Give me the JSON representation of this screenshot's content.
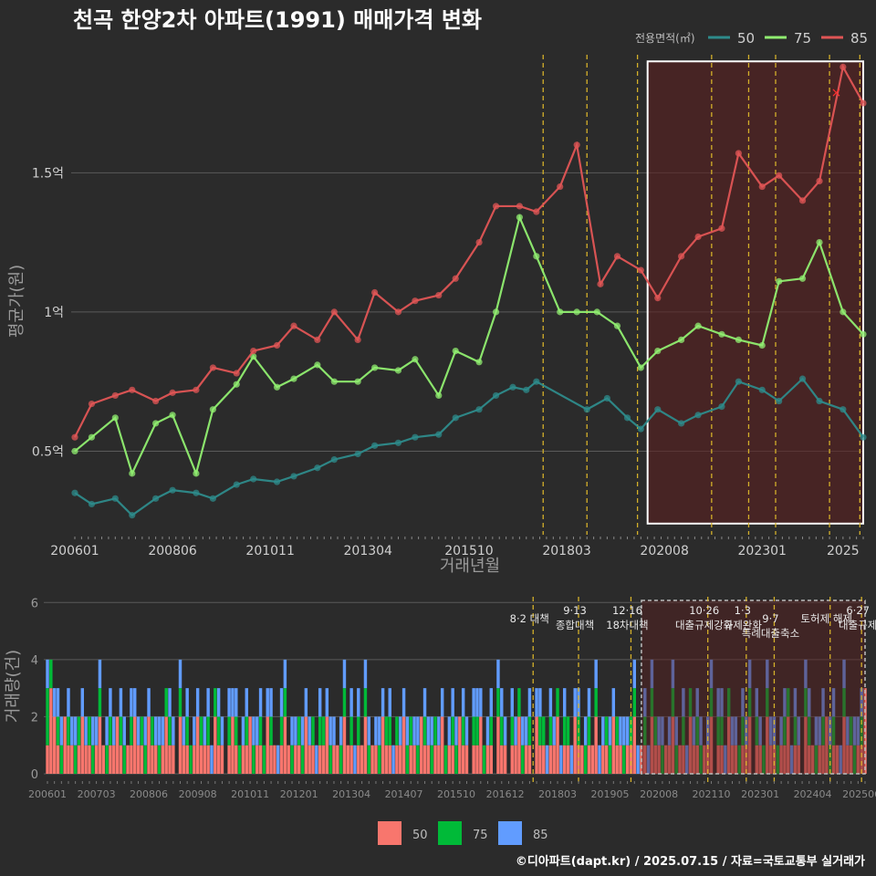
{
  "colors": {
    "background": "#2b2b2b",
    "grid": "#5a5a5a",
    "s50_line": "#2e8b8b",
    "s75_line": "#90ee70",
    "s85_line": "#e05555",
    "bar50": "#f8766d",
    "bar75": "#00ba38",
    "bar85": "#619cff",
    "event_line": "#d4b02a",
    "highlight_fill": "#5a1f1f",
    "axis_text": "#cfcfcf",
    "title_text": "#ffffff"
  },
  "chart_data": [
    {
      "type": "line",
      "title": "천곡 한양2차 아파트(1991) 매매가격 변화",
      "xlabel": "거래년월",
      "ylabel": "평균가(원)",
      "legend_title": "전용면적(㎡)",
      "legend_position": "top-right",
      "x_tick_labels": [
        "200601",
        "200806",
        "201011",
        "201304",
        "201510",
        "201803",
        "202008",
        "202301",
        "2025"
      ],
      "x_range": [
        "2006-01",
        "2025-07"
      ],
      "y_tick_labels": [
        "0.5억",
        "1억",
        "1.5억"
      ],
      "y_ticks": [
        0.5,
        1.0,
        1.5
      ],
      "ylim": [
        0.2,
        1.95
      ],
      "y_unit": "억",
      "grid": true,
      "event_dates": [
        "2017-08",
        "2018-09",
        "2019-12",
        "2021-10",
        "2022-09",
        "2023-05",
        "2024-09",
        "2025-06"
      ],
      "highlight_box": {
        "from": "2020-03",
        "to": "2025-07",
        "y_from": 0.24,
        "y_to": 1.9
      },
      "annotation": {
        "label": "×",
        "date": "2024-11",
        "y": 1.79
      },
      "series": [
        {
          "name": "50",
          "x": [
            "2006-01",
            "2006-06",
            "2007-01",
            "2007-06",
            "2008-01",
            "2008-06",
            "2009-01",
            "2009-06",
            "2010-01",
            "2010-06",
            "2011-01",
            "2011-06",
            "2012-01",
            "2012-06",
            "2013-01",
            "2013-06",
            "2014-01",
            "2014-06",
            "2015-01",
            "2015-06",
            "2016-01",
            "2016-06",
            "2016-11",
            "2017-03",
            "2017-06",
            "2018-09",
            "2019-03",
            "2019-09",
            "2020-01",
            "2020-06",
            "2021-01",
            "2021-06",
            "2022-01",
            "2022-06",
            "2023-01",
            "2023-06",
            "2024-01",
            "2024-06",
            "2025-01",
            "2025-07"
          ],
          "values": [
            0.35,
            0.31,
            0.33,
            0.27,
            0.33,
            0.36,
            0.35,
            0.33,
            0.38,
            0.4,
            0.39,
            0.41,
            0.44,
            0.47,
            0.49,
            0.52,
            0.53,
            0.55,
            0.56,
            0.62,
            0.65,
            0.7,
            0.73,
            0.72,
            0.75,
            0.65,
            0.69,
            0.62,
            0.58,
            0.65,
            0.6,
            0.63,
            0.66,
            0.75,
            0.72,
            0.68,
            0.76,
            0.68,
            0.65,
            0.55
          ]
        },
        {
          "name": "75",
          "x": [
            "2006-01",
            "2006-06",
            "2007-01",
            "2007-06",
            "2008-01",
            "2008-06",
            "2009-01",
            "2009-06",
            "2010-01",
            "2010-06",
            "2011-01",
            "2011-06",
            "2012-01",
            "2012-06",
            "2013-01",
            "2013-06",
            "2014-01",
            "2014-06",
            "2015-01",
            "2015-06",
            "2016-01",
            "2016-06",
            "2017-01",
            "2017-06",
            "2018-01",
            "2018-06",
            "2018-12",
            "2019-06",
            "2020-01",
            "2020-06",
            "2021-01",
            "2021-06",
            "2022-01",
            "2022-06",
            "2023-01",
            "2023-06",
            "2024-01",
            "2024-06",
            "2025-01",
            "2025-07"
          ],
          "values": [
            0.5,
            0.55,
            0.62,
            0.42,
            0.6,
            0.63,
            0.42,
            0.65,
            0.74,
            0.84,
            0.73,
            0.76,
            0.81,
            0.75,
            0.75,
            0.8,
            0.79,
            0.83,
            0.7,
            0.86,
            0.82,
            1.0,
            1.34,
            1.2,
            1.0,
            1.0,
            1.0,
            0.95,
            0.8,
            0.86,
            0.9,
            0.95,
            0.92,
            0.9,
            0.88,
            1.11,
            1.12,
            1.25,
            1.0,
            0.92
          ]
        },
        {
          "name": "85",
          "x": [
            "2006-01",
            "2006-06",
            "2007-01",
            "2007-06",
            "2008-01",
            "2008-06",
            "2009-01",
            "2009-06",
            "2010-01",
            "2010-06",
            "2011-01",
            "2011-06",
            "2012-01",
            "2012-06",
            "2013-01",
            "2013-06",
            "2014-01",
            "2014-06",
            "2015-01",
            "2015-06",
            "2016-01",
            "2016-06",
            "2017-01",
            "2017-06",
            "2018-01",
            "2018-06",
            "2019-01",
            "2019-06",
            "2020-01",
            "2020-06",
            "2021-01",
            "2021-06",
            "2022-01",
            "2022-06",
            "2023-01",
            "2023-06",
            "2024-01",
            "2024-06",
            "2025-01",
            "2025-07"
          ],
          "values": [
            0.55,
            0.67,
            0.7,
            0.72,
            0.68,
            0.71,
            0.72,
            0.8,
            0.78,
            0.86,
            0.88,
            0.95,
            0.9,
            1.0,
            0.9,
            1.07,
            1.0,
            1.04,
            1.06,
            1.12,
            1.25,
            1.38,
            1.38,
            1.36,
            1.45,
            1.6,
            1.1,
            1.2,
            1.15,
            1.05,
            1.2,
            1.27,
            1.3,
            1.57,
            1.45,
            1.49,
            1.4,
            1.47,
            1.88,
            1.75
          ]
        }
      ]
    },
    {
      "type": "bar",
      "ylabel": "거래량(건)",
      "stacked": true,
      "y_tick_labels": [
        "0",
        "2",
        "4",
        "6"
      ],
      "y_ticks": [
        0,
        2,
        4,
        6
      ],
      "ylim": [
        0,
        6.2
      ],
      "x_tick_labels": [
        "200601",
        "200703",
        "200806",
        "200908",
        "201011",
        "201201",
        "201304",
        "201407",
        "201510",
        "201612",
        "201803",
        "201905",
        "202008",
        "202110",
        "202301",
        "202404",
        "202506"
      ],
      "x_range": [
        "2006-01",
        "2025-07"
      ],
      "grid": true,
      "events": [
        {
          "date": "2017-08",
          "label": "8·2 대책",
          "row": 1
        },
        {
          "date": "2018-09",
          "label": "9·13\n종합대책",
          "row": 0
        },
        {
          "date": "2019-12",
          "label": "12·16\n18차대책",
          "row": 0
        },
        {
          "date": "2021-10",
          "label": "10·26\n대출규제강화",
          "row": 0
        },
        {
          "date": "2022-09",
          "label": "1·3\n규제완화",
          "row": 0
        },
        {
          "date": "2023-05",
          "label": "9·7\n특례대출축소",
          "row": 1
        },
        {
          "date": "2024-09",
          "label": "토허제 해제",
          "row": 1
        },
        {
          "date": "2025-06",
          "label": "6·27\n대출규제",
          "row": 0
        }
      ],
      "highlight_box": {
        "from": "2020-03",
        "to": "2025-07"
      },
      "legend": [
        {
          "name": "50",
          "color": "#f8766d"
        },
        {
          "name": "75",
          "color": "#00ba38"
        },
        {
          "name": "85",
          "color": "#619cff"
        }
      ],
      "monthly_volume_note": "monthly counts per area series generated from data below",
      "series": [
        {
          "name": "50",
          "values": [
            1,
            3,
            2,
            1,
            0,
            2,
            1,
            1,
            0,
            1,
            2,
            1,
            1,
            0,
            1,
            2,
            1,
            0,
            1,
            1,
            2,
            1,
            0,
            1,
            1,
            2,
            1,
            1,
            0,
            2,
            1,
            1,
            0,
            1,
            2,
            1,
            1,
            0,
            2,
            1,
            1,
            0,
            1,
            2,
            1,
            1,
            1,
            0,
            2,
            1,
            1,
            0,
            1,
            2,
            1,
            0,
            1,
            1,
            2,
            0,
            1,
            1,
            0,
            2,
            1,
            1,
            0,
            1,
            2,
            1,
            0,
            1,
            1,
            0,
            2,
            1,
            1,
            0,
            1,
            1,
            2,
            0,
            1,
            1,
            0,
            2,
            1,
            1,
            0,
            1,
            1,
            2,
            0,
            1,
            1,
            0,
            2,
            1,
            1,
            0,
            1,
            1,
            2,
            0,
            1,
            1,
            0,
            2,
            1,
            1,
            0,
            1,
            1,
            2,
            0,
            1,
            1,
            0,
            2,
            1,
            1,
            0,
            1,
            1,
            2,
            0,
            1,
            1,
            0,
            2,
            1,
            1,
            0,
            1,
            1,
            2,
            0,
            1,
            1,
            0,
            2,
            1,
            1,
            0,
            1,
            1,
            2,
            0,
            1,
            1,
            0,
            2,
            1,
            1,
            0,
            1,
            1,
            2,
            0,
            1,
            1,
            0,
            2,
            1,
            1,
            0,
            1,
            1,
            2,
            0,
            1,
            1,
            0,
            2,
            1,
            1,
            0,
            1,
            1,
            2,
            0,
            1,
            1,
            0,
            2,
            1,
            1,
            0,
            1,
            1,
            2,
            0,
            1,
            1,
            0,
            2,
            1,
            1,
            0,
            1,
            1,
            2,
            0,
            1,
            1,
            0,
            2,
            1,
            1,
            0,
            1,
            1,
            2,
            0,
            1,
            1,
            0,
            2,
            1,
            1,
            0,
            1,
            1,
            2,
            0,
            1,
            1,
            0,
            2,
            1,
            1,
            0,
            1
          ]
        },
        {
          "name": "75",
          "values": [
            2,
            1,
            0,
            1,
            1,
            0,
            1,
            0,
            1,
            1,
            0,
            0,
            1,
            1,
            0,
            1,
            0,
            1,
            1,
            0,
            0,
            1,
            1,
            0,
            1,
            0,
            0,
            1,
            1,
            0,
            1,
            0,
            1,
            0,
            1,
            1,
            0,
            0,
            1,
            0,
            1,
            1,
            0,
            0,
            1,
            0,
            1,
            0,
            1,
            1,
            0,
            0,
            1,
            0,
            1,
            1,
            0,
            1,
            0,
            1,
            0,
            1,
            1,
            0,
            1,
            0,
            0,
            1,
            1,
            0,
            1,
            0,
            1,
            1,
            0,
            0,
            1,
            0,
            1,
            1,
            0,
            1,
            0,
            0,
            1,
            1,
            0,
            1,
            0,
            1,
            0,
            1,
            1,
            0,
            0,
            1,
            0,
            1,
            1,
            0,
            1,
            0,
            0,
            1,
            1,
            0,
            1,
            0,
            1,
            0,
            1,
            1,
            0,
            0,
            1,
            0,
            1,
            1,
            0,
            1,
            0,
            0,
            1,
            1,
            0,
            1,
            0,
            1,
            0,
            1,
            1,
            0,
            0,
            1,
            0,
            1,
            1,
            0,
            1,
            0,
            0,
            1,
            1,
            0,
            1,
            0,
            1,
            0,
            1,
            1,
            0,
            0,
            1,
            0,
            1,
            1,
            0,
            1,
            0,
            0,
            1,
            1,
            0,
            1,
            0,
            1,
            0,
            1,
            1,
            0,
            0,
            1,
            0,
            1,
            1,
            0,
            1,
            0,
            0,
            1,
            1,
            0,
            1,
            0,
            1,
            0,
            1,
            1,
            0,
            0,
            1,
            0,
            1,
            1,
            0,
            1,
            0,
            0,
            1,
            1,
            0,
            1,
            0,
            1,
            0,
            1,
            1,
            0,
            0,
            1,
            0,
            1,
            1,
            0,
            1,
            0,
            0,
            1,
            1,
            0,
            1,
            0,
            1,
            0,
            1,
            1,
            0,
            0,
            1,
            0,
            1,
            1,
            0,
            1,
            0,
            0,
            1,
            1,
            0
          ]
        },
        {
          "name": "85",
          "values": [
            1,
            0,
            1,
            1,
            1,
            0,
            1,
            1,
            1,
            0,
            1,
            1,
            0,
            1,
            1,
            1,
            0,
            1,
            1,
            1,
            0,
            1,
            1,
            0,
            1,
            1,
            1,
            0,
            1,
            1,
            0,
            1,
            1,
            1,
            0,
            1,
            1,
            0,
            1,
            1,
            1,
            0,
            1,
            1,
            0,
            1,
            1,
            1,
            0,
            1,
            1,
            0,
            1,
            1,
            1,
            0,
            1,
            1,
            0,
            1,
            1,
            1,
            0,
            1,
            1,
            0,
            1,
            1,
            1,
            0,
            1,
            1,
            0,
            1,
            1,
            1,
            0,
            1,
            1,
            0,
            1,
            1,
            1,
            0,
            1,
            1,
            0,
            1,
            1,
            1,
            0,
            1,
            1,
            0,
            1,
            1,
            1,
            0,
            1,
            1,
            0,
            1,
            1,
            1,
            0,
            1,
            1,
            0,
            1,
            1,
            1,
            0,
            1,
            1,
            0,
            1,
            1,
            1,
            0,
            1,
            1,
            0,
            1,
            1,
            1,
            0,
            1,
            1,
            0,
            1,
            1,
            1,
            0,
            1,
            1,
            0,
            1,
            1,
            1,
            0,
            1,
            1,
            0,
            1,
            1,
            1,
            0,
            1,
            1,
            0,
            1,
            1,
            1,
            0,
            1,
            1,
            0,
            1,
            1,
            1,
            0,
            1,
            1,
            0,
            1,
            1,
            1,
            0,
            1,
            1,
            0,
            1,
            1,
            1,
            0,
            1,
            1,
            0,
            1,
            1,
            1,
            0,
            1,
            1,
            0,
            1,
            1,
            1,
            0,
            1,
            1,
            0,
            1,
            1,
            1,
            0,
            1,
            1,
            0,
            1,
            1,
            1,
            0,
            1,
            1,
            0,
            1,
            1,
            1,
            0,
            1,
            1,
            0,
            1,
            1,
            1,
            0,
            1,
            1,
            0,
            1,
            1,
            1,
            0,
            1,
            1,
            0,
            1,
            1,
            1,
            0,
            1,
            1
          ]
        }
      ]
    }
  ],
  "footer": {
    "caption": "©디아파트(dapt.kr) / 2025.07.15 / 자료=국토교통부 실거래가"
  }
}
